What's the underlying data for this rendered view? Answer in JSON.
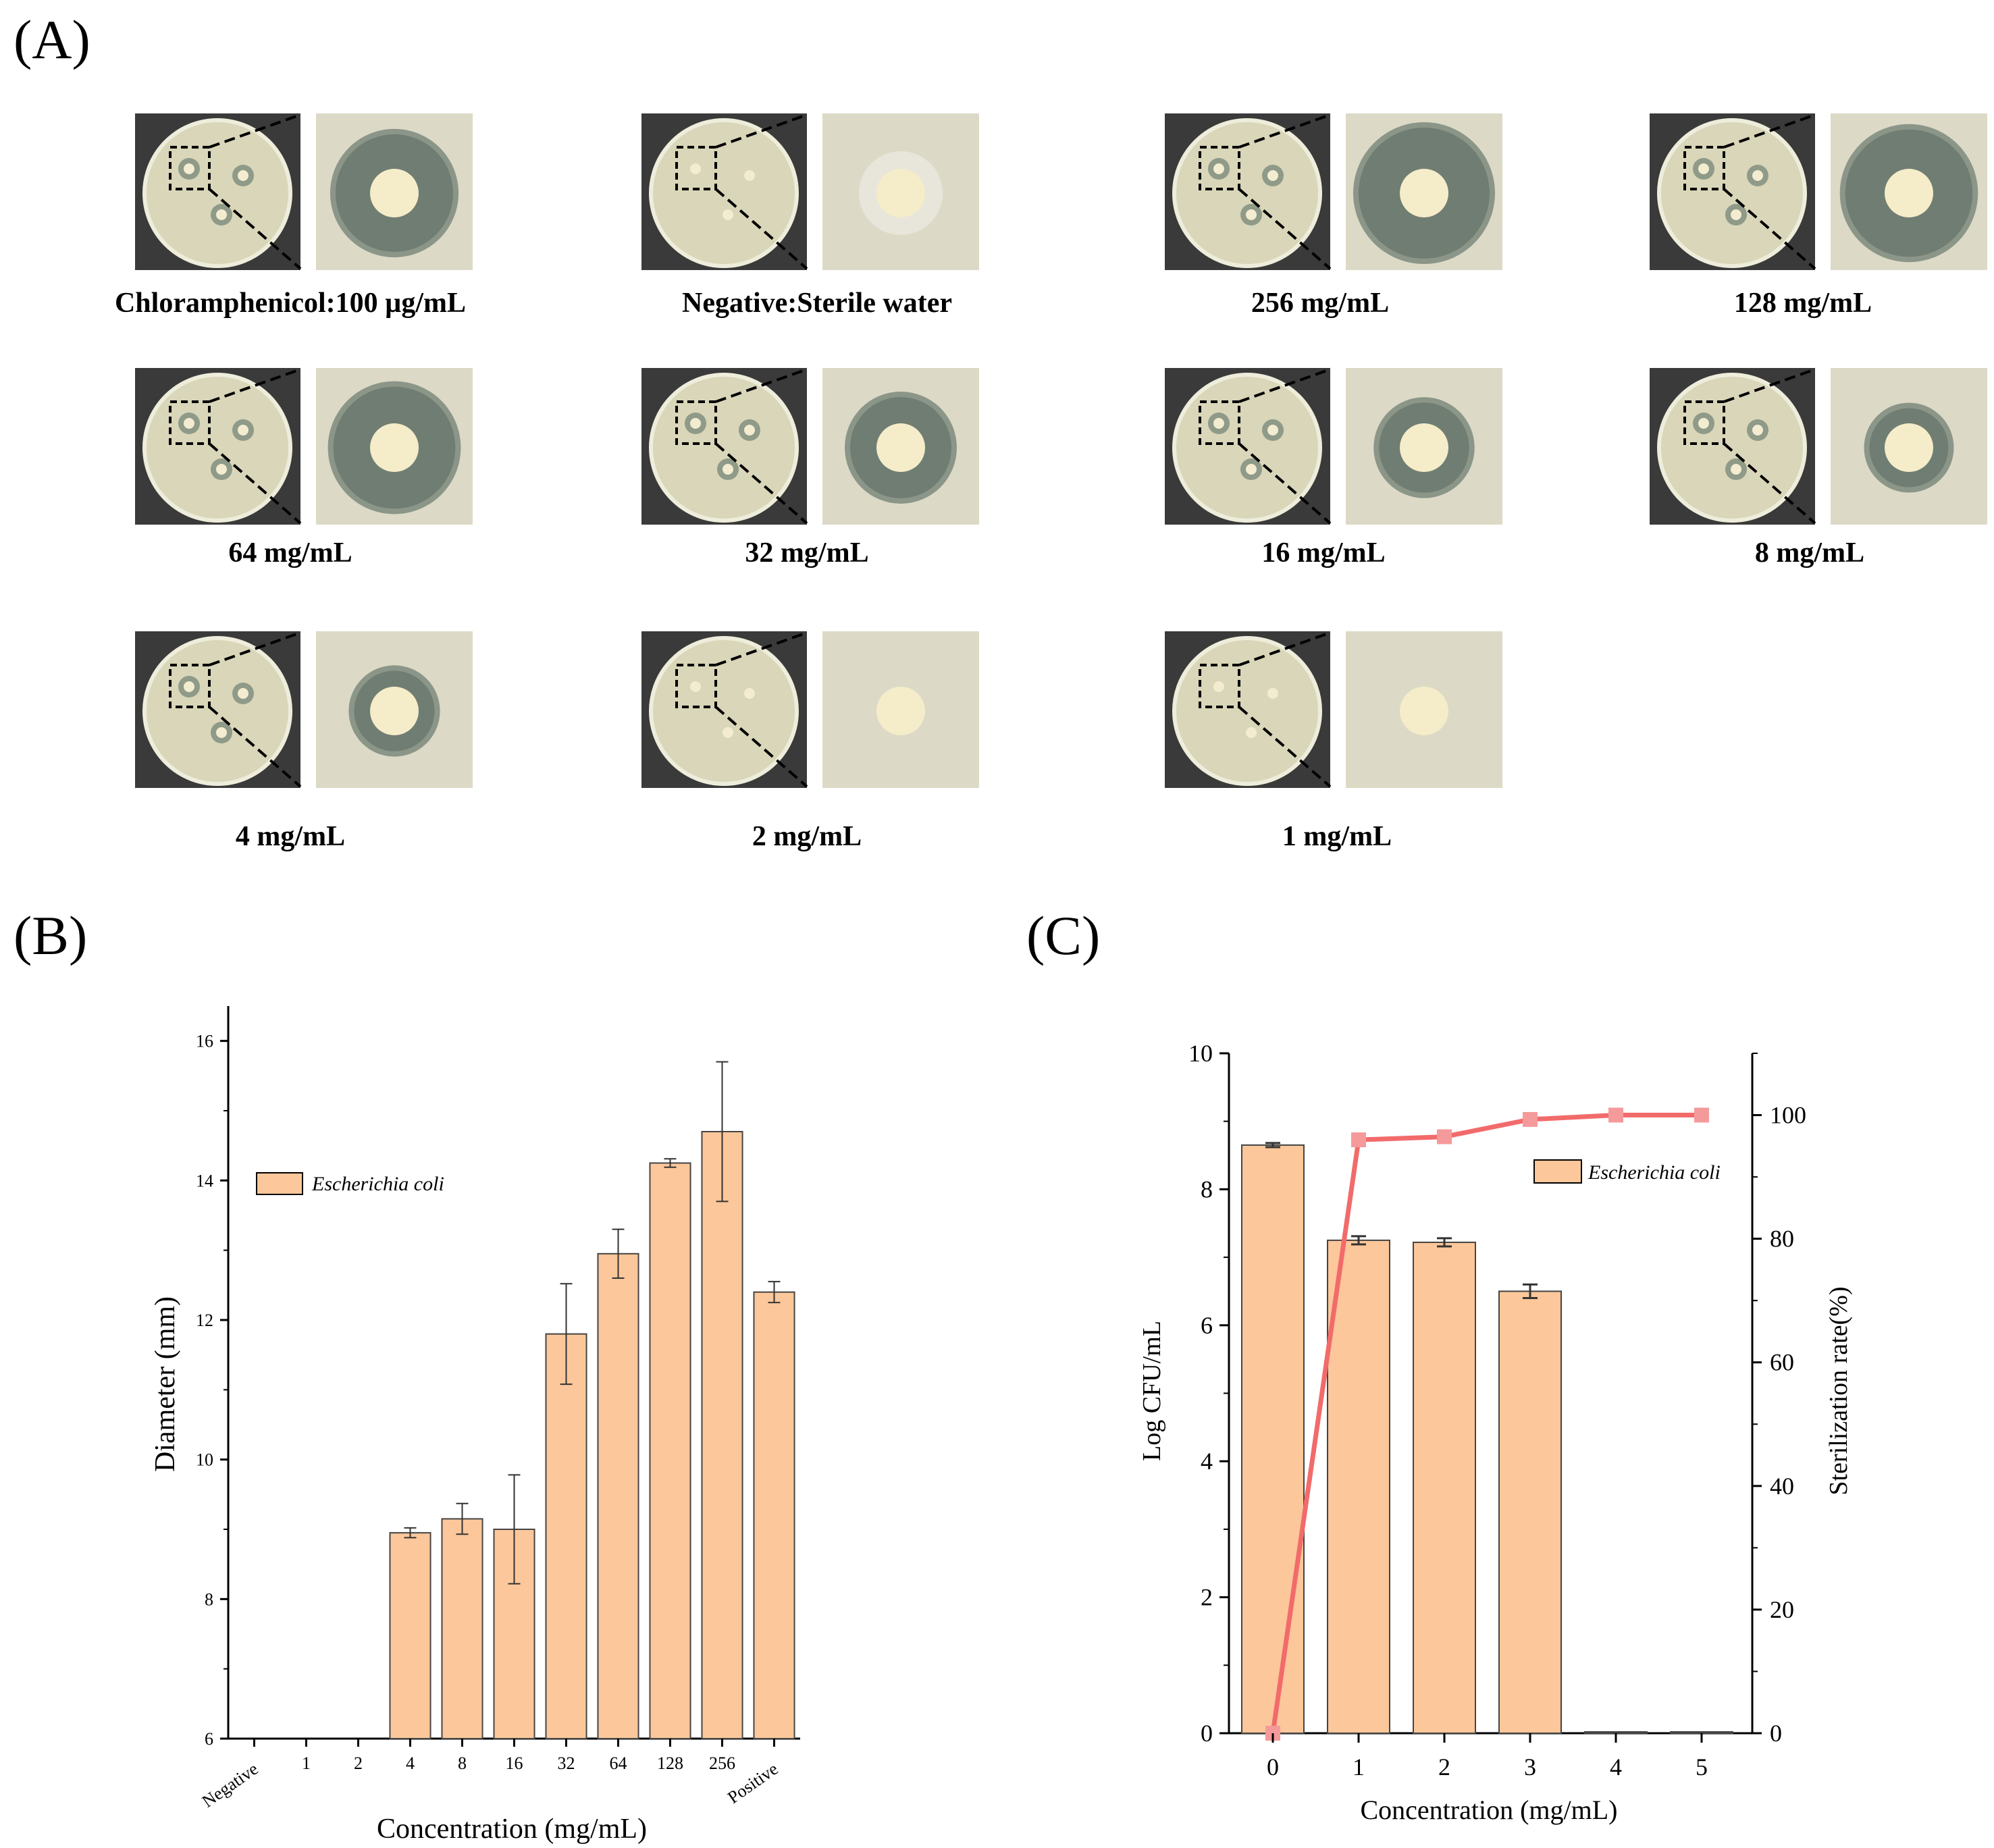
{
  "panels": {
    "a": "(A)",
    "b": "(B)",
    "c": "(C)"
  },
  "plates": [
    {
      "label": "Chloramphenicol:100 µg/mL",
      "zone": "halo",
      "ring": 0.82
    },
    {
      "label": "Negative:Sterile water",
      "zone": "none",
      "ring": 0.0
    },
    {
      "label": "256 mg/mL",
      "zone": "wide",
      "ring": 1.0
    },
    {
      "label": "128 mg/mL",
      "zone": "wide",
      "ring": 0.95
    },
    {
      "label": "64 mg/mL",
      "zone": "wide",
      "ring": 0.88
    },
    {
      "label": "32 mg/mL",
      "zone": "ring",
      "ring": 0.6
    },
    {
      "label": "16 mg/mL",
      "zone": "ring",
      "ring": 0.45
    },
    {
      "label": "8 mg/mL",
      "zone": "thin",
      "ring": 0.3
    },
    {
      "label": "4 mg/mL",
      "zone": "thin",
      "ring": 0.32
    },
    {
      "label": "2 mg/mL",
      "zone": "none",
      "ring": 0.0
    },
    {
      "label": "1 mg/mL",
      "zone": "none",
      "ring": 0.0
    }
  ],
  "chart_data": [
    {
      "id": "B",
      "type": "bar",
      "categories": [
        "Negative",
        "1",
        "2",
        "4",
        "8",
        "16",
        "32",
        "64",
        "128",
        "256",
        "Positive"
      ],
      "series": [
        {
          "name": "Escherichia coli",
          "values": [
            6.0,
            6.0,
            6.0,
            8.95,
            9.15,
            9.0,
            11.8,
            12.95,
            14.25,
            14.7,
            12.4
          ],
          "errors": [
            0.0,
            0.0,
            0.0,
            0.07,
            0.22,
            0.78,
            0.72,
            0.35,
            0.06,
            1.0,
            0.15
          ]
        }
      ],
      "xlabel": "Concentration (mg/mL)",
      "ylabel": "Diameter (mm)",
      "ylim": [
        6,
        16.5
      ],
      "yticks": [
        6,
        8,
        10,
        12,
        14,
        16
      ],
      "legend": "upper-left",
      "colors": {
        "bar": "#FCC79A",
        "edge": "#444444"
      }
    },
    {
      "id": "C",
      "type": "bar",
      "categories": [
        "0",
        "1",
        "2",
        "3",
        "4",
        "5"
      ],
      "series": [
        {
          "name": "Escherichia coli",
          "axis": "left",
          "values": [
            8.65,
            7.25,
            7.22,
            6.5,
            0.0,
            0.0
          ],
          "errors": [
            0.03,
            0.06,
            0.06,
            0.1,
            0.0,
            0.0
          ]
        },
        {
          "name": "Sterilization rate",
          "axis": "right",
          "type": "line",
          "values": [
            0,
            96,
            96.5,
            99.3,
            100,
            100
          ]
        }
      ],
      "xlabel": "Concentration (mg/mL)",
      "ylabel_left": "Log CFU/mL",
      "ylabel_right": "Sterilization rate(%)",
      "ylim_left": [
        0,
        10
      ],
      "ylim_right": [
        0,
        110
      ],
      "yticks_left": [
        0,
        2,
        4,
        6,
        8,
        10
      ],
      "yticks_right": [
        0,
        20,
        40,
        60,
        80,
        100
      ],
      "legend": "right",
      "colors": {
        "bar": "#FCC79A",
        "edge": "#444444",
        "line": "#F26B6B",
        "marker": "#F59A9A"
      }
    }
  ]
}
